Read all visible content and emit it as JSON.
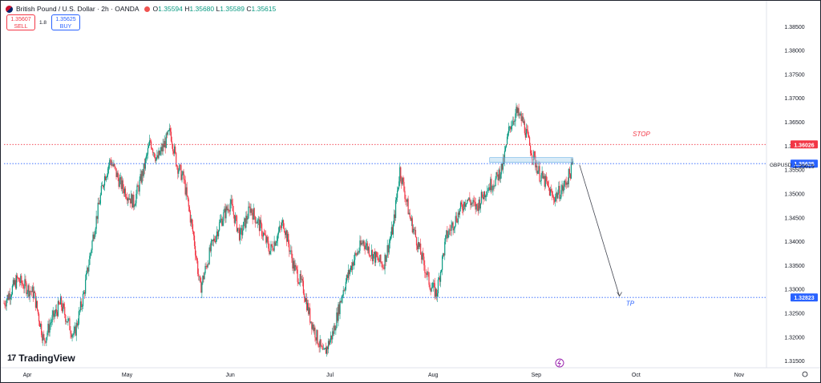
{
  "header": {
    "symbol_title": "British Pound / U.S. Dollar · 2h · OANDA",
    "currency_icon": "gbp-flag-icon",
    "status_icon": "market-closed-dot-icon",
    "ohlc": [
      {
        "k": "O",
        "v": "1.35594"
      },
      {
        "k": "H",
        "v": "1.35680"
      },
      {
        "k": "L",
        "v": "1.35589"
      },
      {
        "k": "C",
        "v": "1.35615"
      }
    ]
  },
  "trade": {
    "sell_price": "1.35607",
    "sell_label": "SELL",
    "spread": "1.8",
    "buy_price": "1.35625",
    "buy_label": "BUY"
  },
  "branding": {
    "logo_text": "TradingView",
    "logo_mark": "17"
  },
  "annotations": {
    "stop_label": "STOP",
    "tp_label": "TP"
  },
  "colors": {
    "up": "#089981",
    "down": "#f23645",
    "stop": "#f23645",
    "tp": "#2962ff",
    "zone": "#a9d3ee"
  },
  "chart_data": {
    "type": "candlestick",
    "symbol": "GBPUSD",
    "ylim": [
      1.3135,
      1.389
    ],
    "y_ticks": [
      "1.38500",
      "1.38000",
      "1.37500",
      "1.37000",
      "1.36500",
      "1.36000",
      "1.35500",
      "1.35000",
      "1.34500",
      "1.34000",
      "1.33500",
      "1.33000",
      "1.32500",
      "1.32000",
      "1.31500"
    ],
    "y_tick_values": [
      1.385,
      1.38,
      1.375,
      1.37,
      1.365,
      1.36,
      1.355,
      1.35,
      1.345,
      1.34,
      1.335,
      1.33,
      1.325,
      1.32,
      1.315
    ],
    "x_ticks": [
      {
        "label": "Apr",
        "date": "2025-04-01"
      },
      {
        "label": "May",
        "date": "2025-05-01"
      },
      {
        "label": "Jun",
        "date": "2025-06-01"
      },
      {
        "label": "Jul",
        "date": "2025-07-01"
      },
      {
        "label": "Aug",
        "date": "2025-08-01"
      },
      {
        "label": "Sep",
        "date": "2025-09-01"
      },
      {
        "label": "Oct",
        "date": "2025-10-01"
      },
      {
        "label": "Nov",
        "date": "2025-11-01"
      }
    ],
    "x_range": [
      "2025-03-25",
      "2025-11-08"
    ],
    "price_path": [
      [
        "2025-03-25",
        1.327
      ],
      [
        "2025-03-29",
        1.332
      ],
      [
        "2025-04-03",
        1.329
      ],
      [
        "2025-04-06",
        1.319
      ],
      [
        "2025-04-08",
        1.323
      ],
      [
        "2025-04-11",
        1.327
      ],
      [
        "2025-04-15",
        1.32
      ],
      [
        "2025-04-18",
        1.329
      ],
      [
        "2025-04-21",
        1.342
      ],
      [
        "2025-04-24",
        1.353
      ],
      [
        "2025-04-26",
        1.357
      ],
      [
        "2025-04-29",
        1.352
      ],
      [
        "2025-05-03",
        1.348
      ],
      [
        "2025-05-06",
        1.355
      ],
      [
        "2025-05-08",
        1.361
      ],
      [
        "2025-05-10",
        1.357
      ],
      [
        "2025-05-12",
        1.36
      ],
      [
        "2025-05-14",
        1.363
      ],
      [
        "2025-05-16",
        1.356
      ],
      [
        "2025-05-18",
        1.353
      ],
      [
        "2025-05-21",
        1.341
      ],
      [
        "2025-05-23",
        1.33
      ],
      [
        "2025-05-26",
        1.338
      ],
      [
        "2025-05-29",
        1.344
      ],
      [
        "2025-06-01",
        1.348
      ],
      [
        "2025-06-04",
        1.341
      ],
      [
        "2025-06-07",
        1.347
      ],
      [
        "2025-06-10",
        1.343
      ],
      [
        "2025-06-13",
        1.338
      ],
      [
        "2025-06-17",
        1.344
      ],
      [
        "2025-06-20",
        1.335
      ],
      [
        "2025-06-23",
        1.33
      ],
      [
        "2025-06-25",
        1.324
      ],
      [
        "2025-06-27",
        1.32
      ],
      [
        "2025-06-29",
        1.316
      ],
      [
        "2025-07-02",
        1.321
      ],
      [
        "2025-07-05",
        1.33
      ],
      [
        "2025-07-08",
        1.336
      ],
      [
        "2025-07-11",
        1.34
      ],
      [
        "2025-07-14",
        1.337
      ],
      [
        "2025-07-17",
        1.335
      ],
      [
        "2025-07-20",
        1.343
      ],
      [
        "2025-07-22",
        1.355
      ],
      [
        "2025-07-25",
        1.345
      ],
      [
        "2025-07-28",
        1.338
      ],
      [
        "2025-07-31",
        1.331
      ],
      [
        "2025-08-02",
        1.329
      ],
      [
        "2025-08-05",
        1.341
      ],
      [
        "2025-08-08",
        1.345
      ],
      [
        "2025-08-11",
        1.349
      ],
      [
        "2025-08-14",
        1.347
      ],
      [
        "2025-08-17",
        1.351
      ],
      [
        "2025-08-20",
        1.353
      ],
      [
        "2025-08-22",
        1.356
      ],
      [
        "2025-08-24",
        1.364
      ],
      [
        "2025-08-26",
        1.367
      ],
      [
        "2025-08-28",
        1.365
      ],
      [
        "2025-08-30",
        1.36
      ],
      [
        "2025-09-02",
        1.354
      ],
      [
        "2025-09-04",
        1.352
      ],
      [
        "2025-09-06",
        1.349
      ],
      [
        "2025-09-09",
        1.351
      ],
      [
        "2025-09-11",
        1.354
      ],
      [
        "2025-09-12",
        1.35615
      ]
    ],
    "levels": {
      "stop": 1.36026,
      "last_price": 1.35615,
      "ask": 1.35625,
      "tp": 1.32823
    },
    "price_labels": {
      "stop": "1.36026",
      "ask": "1.35625",
      "last": "1.35615",
      "tp": "1.32823",
      "symbol": "GBPUSD"
    },
    "zone": {
      "from": "2025-08-18",
      "to": "2025-09-12",
      "high": 1.357,
      "low": 1.3565
    },
    "arrow": {
      "from_date": "2025-09-14",
      "from_price": 1.356,
      "to_date": "2025-09-26",
      "to_price": 1.3285
    },
    "label_positions": {
      "stop": [
        "2025-09-30",
        1.362
      ],
      "tp": [
        "2025-09-28",
        1.3265
      ]
    },
    "grid": false
  }
}
